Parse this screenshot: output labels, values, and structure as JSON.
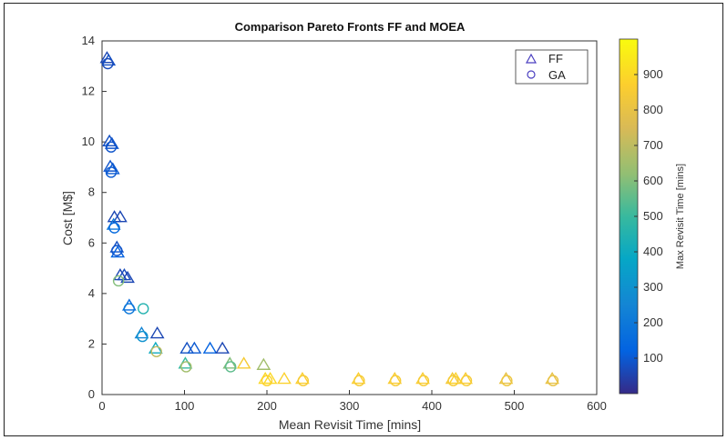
{
  "chart_data": {
    "type": "scatter",
    "title": "Comparison Pareto Fronts FF and MOEA",
    "xlabel": "Mean Revisit Time [mins]",
    "ylabel": "Cost [M$]",
    "xlim": [
      0,
      600
    ],
    "ylim": [
      0,
      14
    ],
    "xticks": [
      0,
      100,
      200,
      300,
      400,
      500,
      600
    ],
    "yticks": [
      0,
      2,
      4,
      6,
      8,
      10,
      12,
      14
    ],
    "grid": false,
    "legend_position": "top-right",
    "colorbar": {
      "label": "Max Revisit Time [mins]",
      "min": 0,
      "max": 1000,
      "ticks": [
        100,
        200,
        300,
        400,
        500,
        600,
        700,
        800,
        900
      ],
      "colormap": "parula"
    },
    "series": [
      {
        "name": "FF",
        "marker": "triangle",
        "points": [
          {
            "x": 6,
            "y": 13.3,
            "c": 60
          },
          {
            "x": 8,
            "y": 13.2,
            "c": 80
          },
          {
            "x": 9,
            "y": 10.0,
            "c": 80
          },
          {
            "x": 12,
            "y": 9.9,
            "c": 90
          },
          {
            "x": 10,
            "y": 9.0,
            "c": 90
          },
          {
            "x": 13,
            "y": 8.9,
            "c": 100
          },
          {
            "x": 15,
            "y": 7.0,
            "c": 60
          },
          {
            "x": 22,
            "y": 7.0,
            "c": 60
          },
          {
            "x": 14,
            "y": 6.7,
            "c": 200
          },
          {
            "x": 18,
            "y": 5.8,
            "c": 80
          },
          {
            "x": 19,
            "y": 5.6,
            "c": 120
          },
          {
            "x": 22,
            "y": 4.7,
            "c": 60
          },
          {
            "x": 27,
            "y": 4.7,
            "c": 70
          },
          {
            "x": 31,
            "y": 4.6,
            "c": 60
          },
          {
            "x": 33,
            "y": 3.5,
            "c": 150
          },
          {
            "x": 48,
            "y": 2.4,
            "c": 250
          },
          {
            "x": 67,
            "y": 2.4,
            "c": 60
          },
          {
            "x": 65,
            "y": 1.8,
            "c": 400
          },
          {
            "x": 103,
            "y": 1.8,
            "c": 80
          },
          {
            "x": 112,
            "y": 1.8,
            "c": 100
          },
          {
            "x": 131,
            "y": 1.8,
            "c": 120
          },
          {
            "x": 146,
            "y": 1.8,
            "c": 60
          },
          {
            "x": 101,
            "y": 1.2,
            "c": 500
          },
          {
            "x": 155,
            "y": 1.2,
            "c": 600
          },
          {
            "x": 172,
            "y": 1.2,
            "c": 850
          },
          {
            "x": 196,
            "y": 1.15,
            "c": 650
          },
          {
            "x": 198,
            "y": 0.6,
            "c": 900
          },
          {
            "x": 204,
            "y": 0.6,
            "c": 900
          },
          {
            "x": 221,
            "y": 0.6,
            "c": 880
          },
          {
            "x": 243,
            "y": 0.6,
            "c": 870
          },
          {
            "x": 311,
            "y": 0.6,
            "c": 870
          },
          {
            "x": 355,
            "y": 0.6,
            "c": 860
          },
          {
            "x": 389,
            "y": 0.6,
            "c": 860
          },
          {
            "x": 425,
            "y": 0.6,
            "c": 840
          },
          {
            "x": 429,
            "y": 0.6,
            "c": 880
          },
          {
            "x": 441,
            "y": 0.6,
            "c": 860
          },
          {
            "x": 490,
            "y": 0.6,
            "c": 800
          },
          {
            "x": 546,
            "y": 0.6,
            "c": 800
          }
        ]
      },
      {
        "name": "GA",
        "marker": "circle",
        "points": [
          {
            "x": 7,
            "y": 13.1,
            "c": 70
          },
          {
            "x": 11,
            "y": 9.8,
            "c": 90
          },
          {
            "x": 11,
            "y": 8.8,
            "c": 100
          },
          {
            "x": 15,
            "y": 6.6,
            "c": 150
          },
          {
            "x": 18,
            "y": 5.7,
            "c": 90
          },
          {
            "x": 20,
            "y": 4.5,
            "c": 600
          },
          {
            "x": 33,
            "y": 3.4,
            "c": 200
          },
          {
            "x": 50,
            "y": 3.4,
            "c": 450
          },
          {
            "x": 49,
            "y": 2.3,
            "c": 300
          },
          {
            "x": 66,
            "y": 1.7,
            "c": 700
          },
          {
            "x": 102,
            "y": 1.1,
            "c": 650
          },
          {
            "x": 156,
            "y": 1.1,
            "c": 550
          },
          {
            "x": 200,
            "y": 0.55,
            "c": 880
          },
          {
            "x": 244,
            "y": 0.55,
            "c": 850
          },
          {
            "x": 312,
            "y": 0.55,
            "c": 850
          },
          {
            "x": 356,
            "y": 0.55,
            "c": 850
          },
          {
            "x": 390,
            "y": 0.55,
            "c": 850
          },
          {
            "x": 426,
            "y": 0.55,
            "c": 850
          },
          {
            "x": 442,
            "y": 0.55,
            "c": 850
          },
          {
            "x": 491,
            "y": 0.55,
            "c": 820
          },
          {
            "x": 547,
            "y": 0.55,
            "c": 800
          }
        ]
      }
    ]
  }
}
